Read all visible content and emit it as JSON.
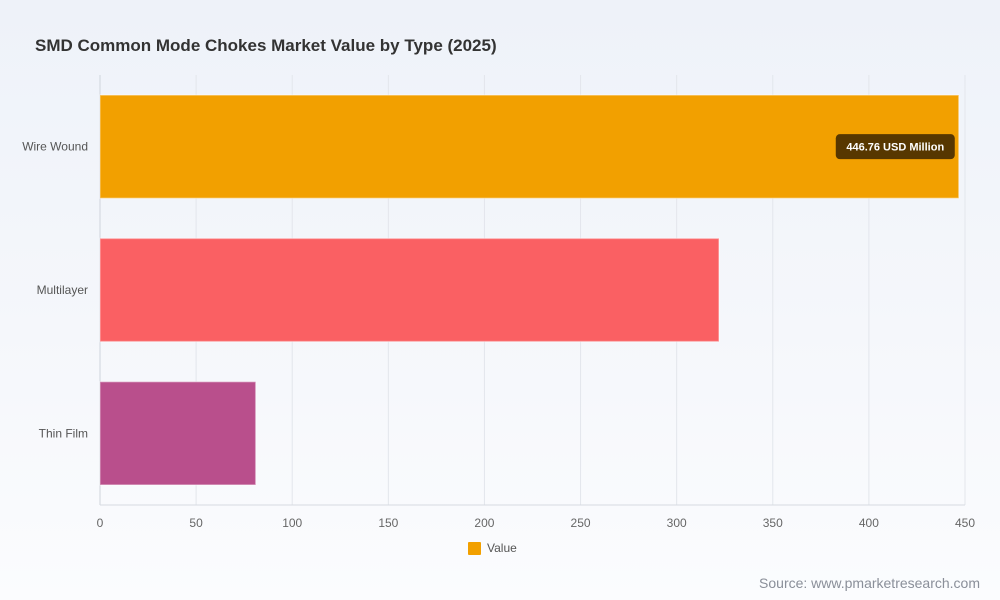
{
  "chart_data": {
    "type": "bar",
    "orientation": "horizontal",
    "title": "SMD Common Mode Chokes Market Value by Type (2025)",
    "categories": [
      "Wire Wound",
      "Multilayer",
      "Thin Film"
    ],
    "series": [
      {
        "name": "Value",
        "values": [
          446.76,
          322.0,
          81.0
        ]
      }
    ],
    "xlim": [
      0,
      450
    ],
    "xticks": [
      0,
      50,
      100,
      150,
      200,
      250,
      300,
      350,
      400,
      450
    ],
    "bar_colors": [
      "#f2a000",
      "#fa6063",
      "#b94f8c"
    ],
    "grid": true,
    "legend": {
      "position": "bottom",
      "label": "Value",
      "color": "#f2a000"
    },
    "tooltip": {
      "category": "Wire Wound",
      "text": "446.76 USD Million"
    }
  },
  "source": "Source: www.pmarketresearch.com"
}
